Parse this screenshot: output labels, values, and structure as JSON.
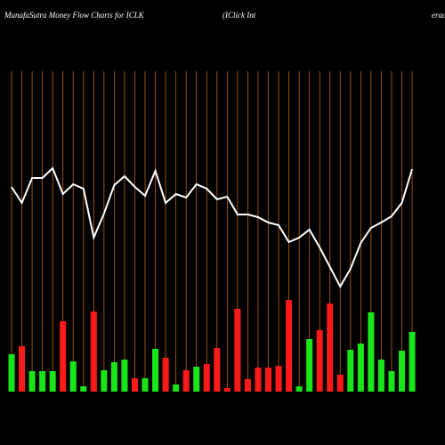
{
  "chart_data": {
    "type": "bar",
    "title": "MunafaSutra  Money Flow  Charts for ICLK",
    "subtitle": "(IClick Int",
    "subtitle_cut": "erac",
    "categories": [
      null,
      null,
      null,
      null,
      null,
      null,
      null,
      null,
      null,
      null,
      null,
      null,
      null,
      null,
      null,
      null,
      null,
      null,
      null,
      null,
      null,
      null,
      null,
      null,
      null,
      null,
      null,
      null,
      null,
      null,
      null,
      null,
      null,
      null,
      null,
      null,
      null,
      null,
      null,
      null
    ],
    "ylim": [
      0,
      440
    ],
    "grid": true,
    "grid_color": "#b8651b",
    "series": [
      {
        "type": "bar",
        "values": [
          42,
          51,
          23,
          23,
          23,
          79,
          34,
          6,
          90,
          24,
          33,
          36,
          15,
          15,
          48,
          38,
          8,
          24,
          28,
          31,
          49,
          4,
          93,
          14,
          27,
          27,
          29,
          103,
          6,
          59,
          69,
          99,
          19,
          47,
          54,
          89,
          36,
          23,
          46,
          67
        ],
        "colors": [
          "#19e619",
          "#ff1a1a",
          "#19e619",
          "#19e619",
          "#19e619",
          "#ff1a1a",
          "#19e619",
          "#19e619",
          "#ff1a1a",
          "#19e619",
          "#19e619",
          "#19e619",
          "#ff1a1a",
          "#19e619",
          "#19e619",
          "#ff1a1a",
          "#19e619",
          "#ff1a1a",
          "#19e619",
          "#ff1a1a",
          "#ff1a1a",
          "#ff1a1a",
          "#ff1a1a",
          "#ff1a1a",
          "#ff1a1a",
          "#ff1a1a",
          "#ff1a1a",
          "#ff1a1a",
          "#19e619",
          "#19e619",
          "#ff1a1a",
          "#ff1a1a",
          "#ff1a1a",
          "#19e619",
          "#19e619",
          "#19e619",
          "#19e619",
          "#19e619",
          "#19e619",
          "#19e619"
        ]
      },
      {
        "type": "line",
        "color": "#ffffff",
        "values": [
          230,
          212,
          240,
          240,
          251,
          222,
          233,
          228,
          173,
          200,
          232,
          242,
          230,
          220,
          248,
          212,
          222,
          218,
          233,
          228,
          216,
          219,
          199,
          199,
          196,
          190,
          187,
          168,
          173,
          182,
          162,
          140,
          118,
          138,
          167,
          184,
          190,
          197,
          212,
          250
        ]
      }
    ]
  }
}
